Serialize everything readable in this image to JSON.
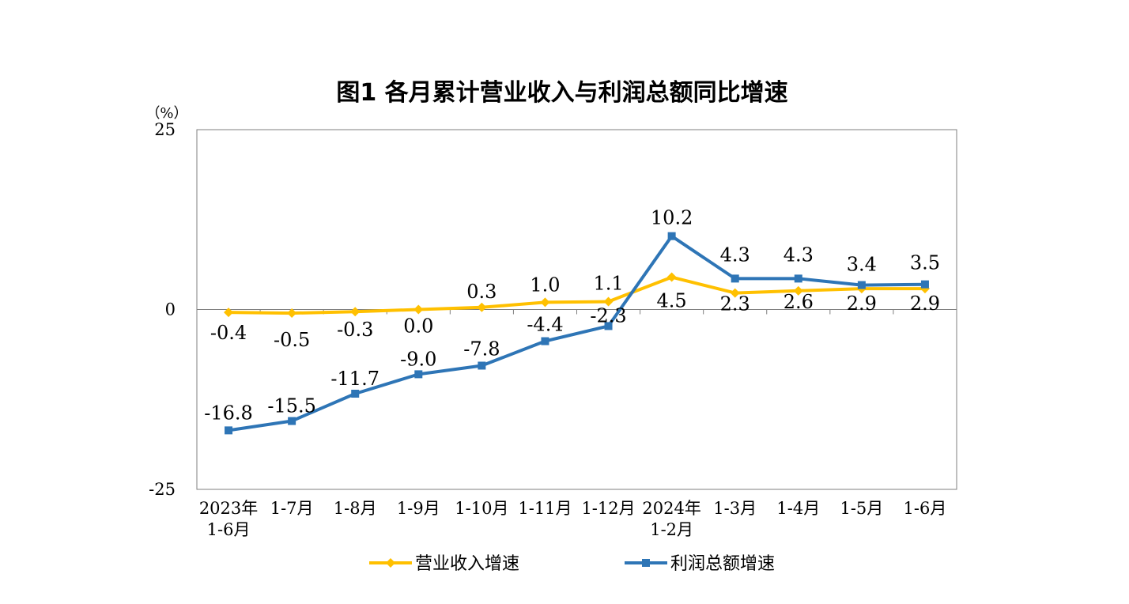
{
  "chart_data": {
    "type": "line",
    "title": "图1  各月累计营业收入与利润总额同比增速",
    "y_unit": "（%）",
    "ylim": [
      -25,
      25
    ],
    "y_ticks": [
      "25",
      "0",
      "-25"
    ],
    "y_tick_values": [
      25,
      0,
      -25
    ],
    "categories": [
      "2023年\n1-6月",
      "1-7月",
      "1-8月",
      "1-9月",
      "1-10月",
      "1-11月",
      "1-12月",
      "2024年\n1-2月",
      "1-3月",
      "1-4月",
      "1-5月",
      "1-6月"
    ],
    "grid": false,
    "legend_position": "bottom",
    "series": [
      {
        "name": "营业收入增速",
        "color": "#FFC000",
        "marker": "diamond",
        "values": [
          -0.4,
          -0.5,
          -0.3,
          0.0,
          0.3,
          1.0,
          1.1,
          4.5,
          2.3,
          2.6,
          2.9,
          2.9
        ],
        "labels": [
          "-0.4",
          "-0.5",
          "-0.3",
          "0.0",
          "0.3",
          "1.0",
          "1.1",
          "4.5",
          "2.3",
          "2.6",
          "2.9",
          "2.9"
        ]
      },
      {
        "name": "利润总额增速",
        "color": "#2E75B6",
        "marker": "square",
        "values": [
          -16.8,
          -15.5,
          -11.7,
          -9.0,
          -7.8,
          -4.4,
          -2.3,
          10.2,
          4.3,
          4.3,
          3.4,
          3.5
        ],
        "labels": [
          "-16.8",
          "-15.5",
          "-11.7",
          "-9.0",
          "-7.8",
          "-4.4",
          "-2.3",
          "10.2",
          "4.3",
          "4.3",
          "3.4",
          "3.5"
        ]
      }
    ]
  }
}
